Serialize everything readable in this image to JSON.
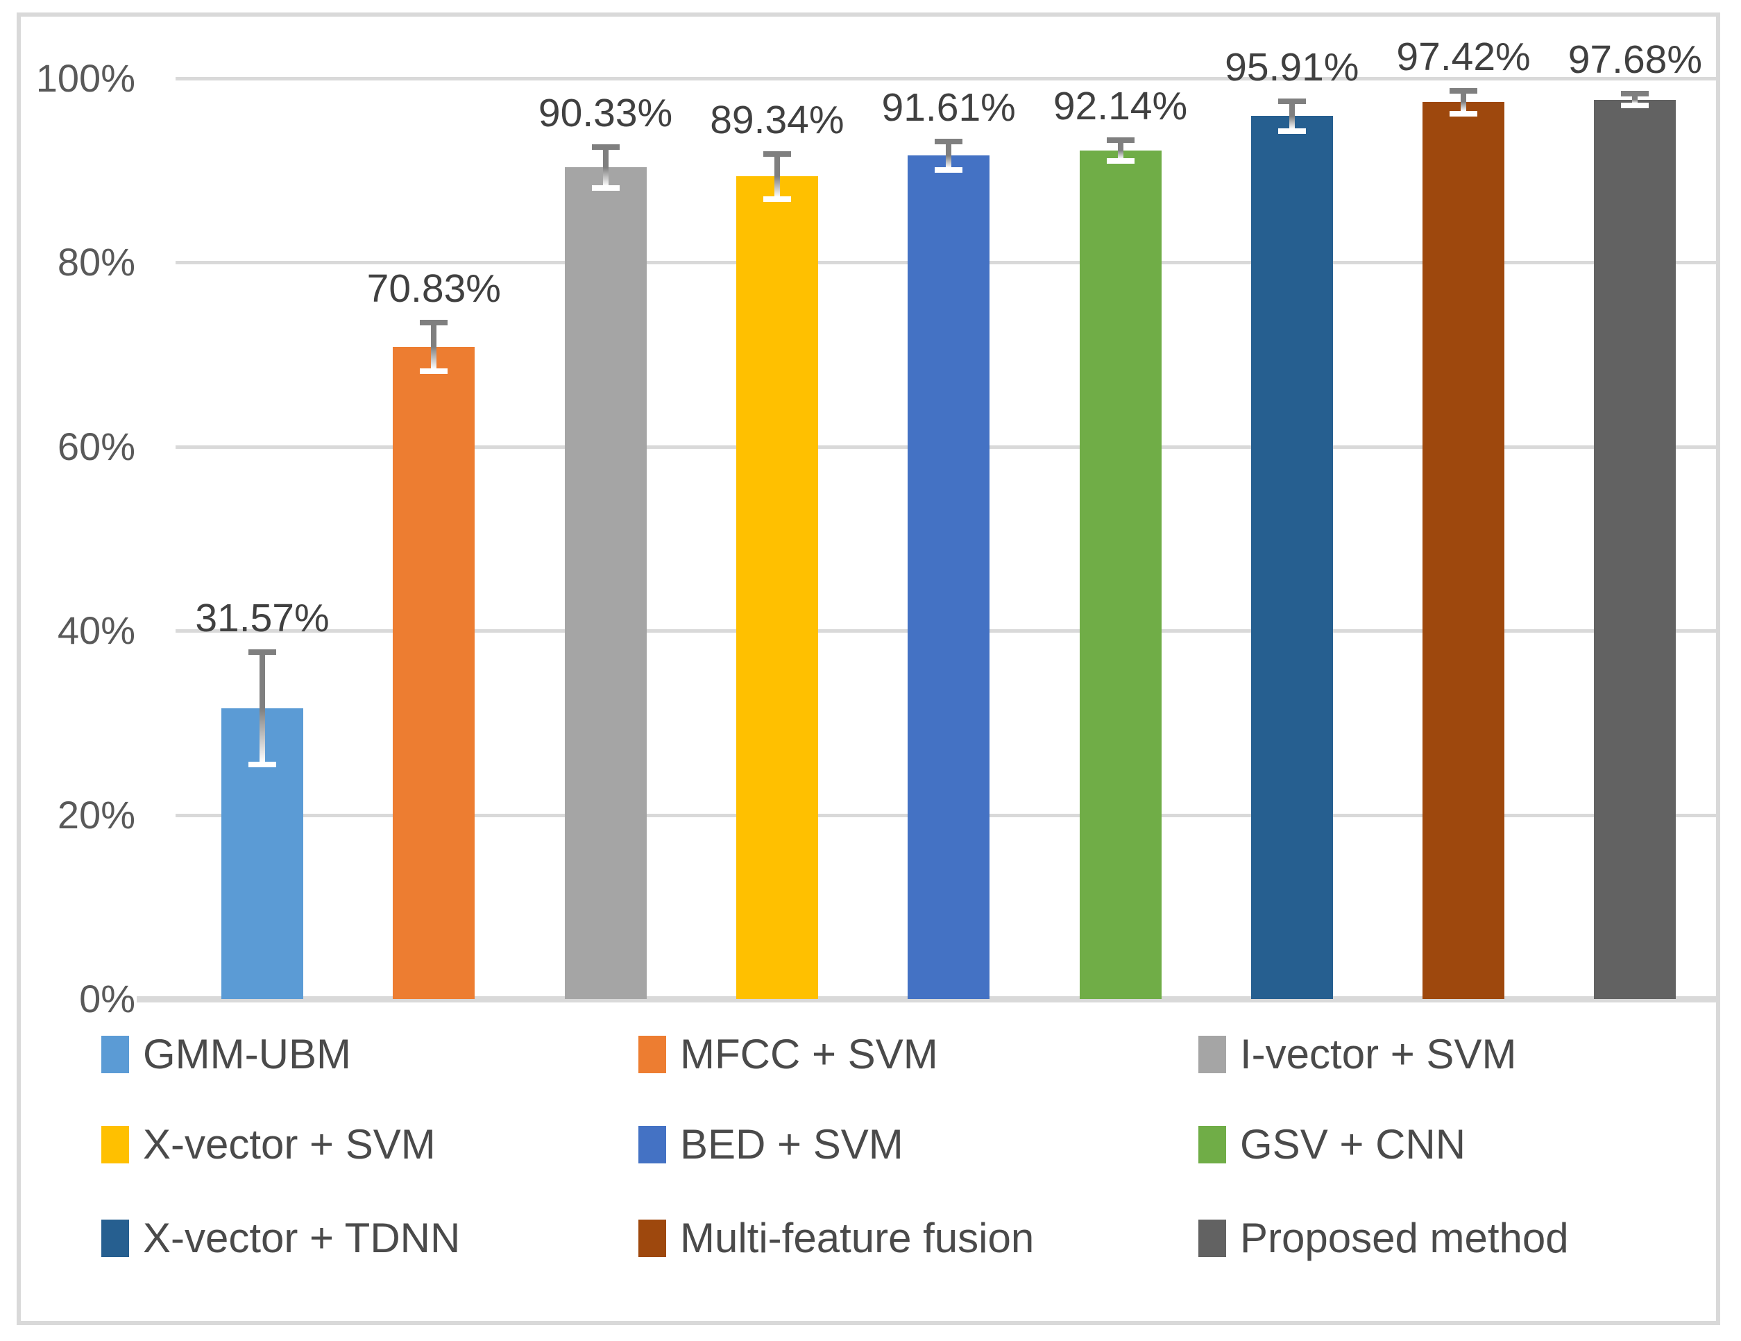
{
  "figure": {
    "background_color": "#ffffff",
    "frame_border_color": "#d9d9d9"
  },
  "chart_data": {
    "type": "bar",
    "title": "",
    "xlabel": "",
    "ylabel": "",
    "ylim": [
      0,
      100
    ],
    "grid": true,
    "gridline_color": "#d9d9d9",
    "axis_tick_color": "#595959",
    "data_label_color": "#404040",
    "legend_position": "bottom",
    "categories": [
      "GMM-UBM",
      "MFCC + SVM",
      "I-vector + SVM",
      "X-vector + SVM",
      "BED + SVM",
      "GSV + CNN",
      "X-vector + TDNN",
      "Multi-feature fusion",
      "Proposed method"
    ],
    "values": [
      31.57,
      70.83,
      90.33,
      89.34,
      91.61,
      92.14,
      95.91,
      97.42,
      97.68
    ],
    "data_labels": [
      "31.57%",
      "70.83%",
      "90.33%",
      "89.34%",
      "91.61%",
      "92.14%",
      "95.91%",
      "97.42%",
      "97.68%"
    ],
    "errors": [
      5.9,
      2.4,
      2.0,
      2.2,
      1.3,
      0.9,
      1.4,
      1.0,
      0.4
    ],
    "bar_colors": [
      "#5B9BD5",
      "#ED7D31",
      "#A5A5A5",
      "#FFC000",
      "#4472C4",
      "#70AD47",
      "#265F90",
      "#9E480D",
      "#626262"
    ],
    "error_bar": {
      "outer_color": "#7f7f7f",
      "inner_color": "#ffffff"
    },
    "y_ticks": [
      {
        "label": "100%",
        "value": 100
      },
      {
        "label": "80%",
        "value": 80
      },
      {
        "label": "60%",
        "value": 60
      },
      {
        "label": "40%",
        "value": 40
      },
      {
        "label": "20%",
        "value": 20
      },
      {
        "label": "0%",
        "value": 0
      }
    ],
    "legend": [
      {
        "label": "GMM-UBM",
        "color": "#5B9BD5"
      },
      {
        "label": "MFCC + SVM",
        "color": "#ED7D31"
      },
      {
        "label": "I-vector + SVM",
        "color": "#A5A5A5"
      },
      {
        "label": "X-vector + SVM",
        "color": "#FFC000"
      },
      {
        "label": "BED + SVM",
        "color": "#4472C4"
      },
      {
        "label": "GSV + CNN",
        "color": "#70AD47"
      },
      {
        "label": "X-vector + TDNN",
        "color": "#265F90"
      },
      {
        "label": "Multi-feature fusion",
        "color": "#9E480D"
      },
      {
        "label": "Proposed method",
        "color": "#626262"
      }
    ]
  }
}
